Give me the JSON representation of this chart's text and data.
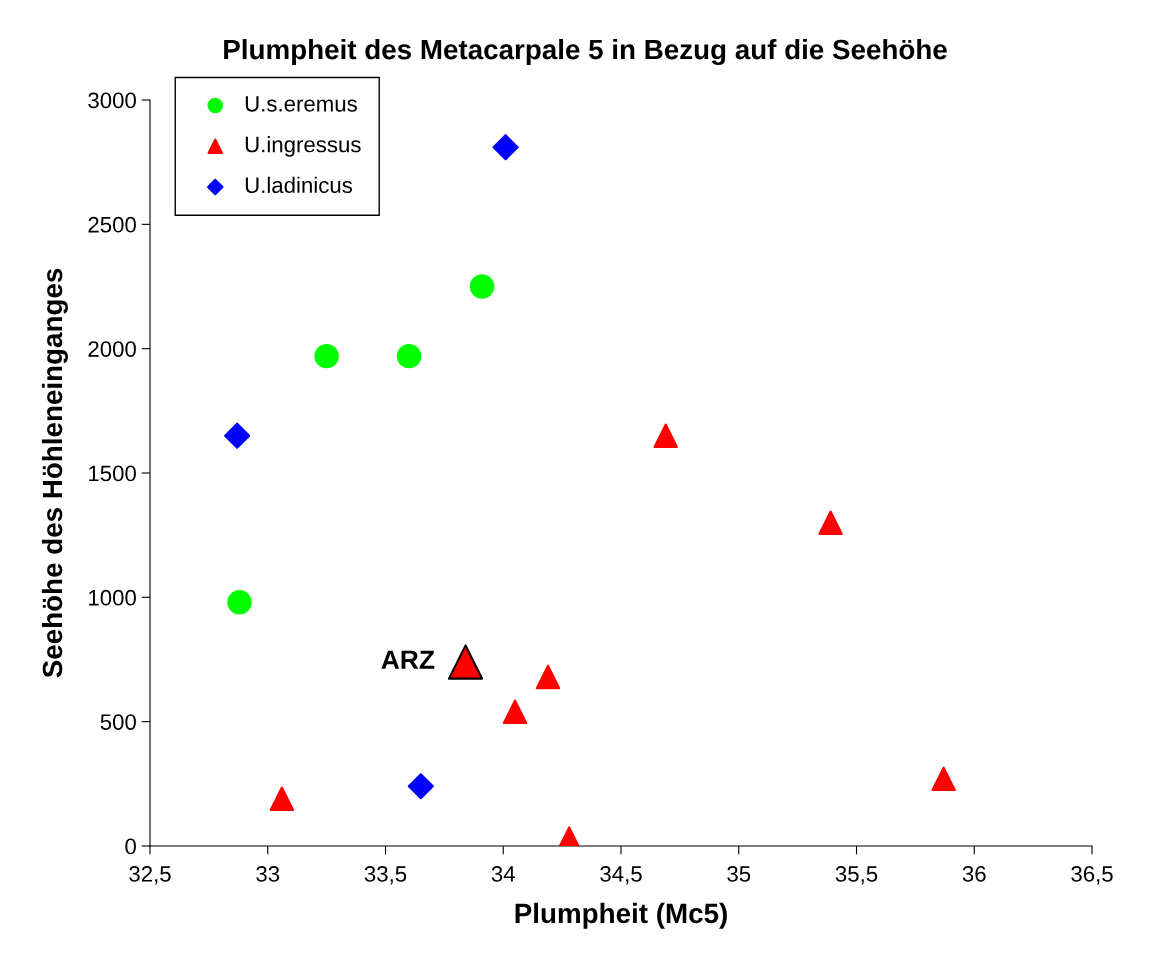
{
  "chart_data": {
    "type": "scatter",
    "title": "Plumpheit des Metacarpale 5 in Bezug auf die Seehöhe",
    "xlabel": "Plumpheit (Mc5)",
    "ylabel": "Seehöhe des Höhleneinganges",
    "xlim": [
      32.5,
      36.5
    ],
    "ylim": [
      0,
      3000
    ],
    "xticks": [
      {
        "value": 32.5,
        "label": "32,5"
      },
      33,
      {
        "value": 33.5,
        "label": "33,5"
      },
      34,
      {
        "value": 34.5,
        "label": "34,5"
      },
      35,
      {
        "value": 35.5,
        "label": "35,5"
      },
      36,
      {
        "value": 36.5,
        "label": "36,5"
      }
    ],
    "yticks": [
      0,
      500,
      1000,
      1500,
      2000,
      2500,
      3000
    ],
    "grid": false,
    "legend": "top left",
    "series": [
      {
        "name": "U.s.eremus",
        "color": "#00ff00",
        "marker": "circle",
        "x": [
          32.88,
          33.25,
          33.6,
          33.91
        ],
        "values": [
          980,
          1970,
          1970,
          2250
        ]
      },
      {
        "name": "U.ingressus",
        "color": "#ff0000",
        "marker": "triangle",
        "x": [
          33.06,
          34.05,
          34.19,
          34.28,
          34.69,
          35.39,
          35.87
        ],
        "values": [
          190,
          540,
          680,
          30,
          1650,
          1300,
          270
        ]
      },
      {
        "name": "U.ladinicus",
        "color": "#0000ff",
        "marker": "diamond",
        "x": [
          34.01,
          32.87,
          33.65
        ],
        "values": [
          2810,
          1650,
          240
        ]
      },
      {
        "color": "#ff0000",
        "marker": "triangle",
        "x": [
          33.84
        ],
        "values": [
          740
        ]
      }
    ],
    "annotations": [
      {
        "text": "ARZ",
        "x": 33.84,
        "y": 740
      }
    ]
  }
}
